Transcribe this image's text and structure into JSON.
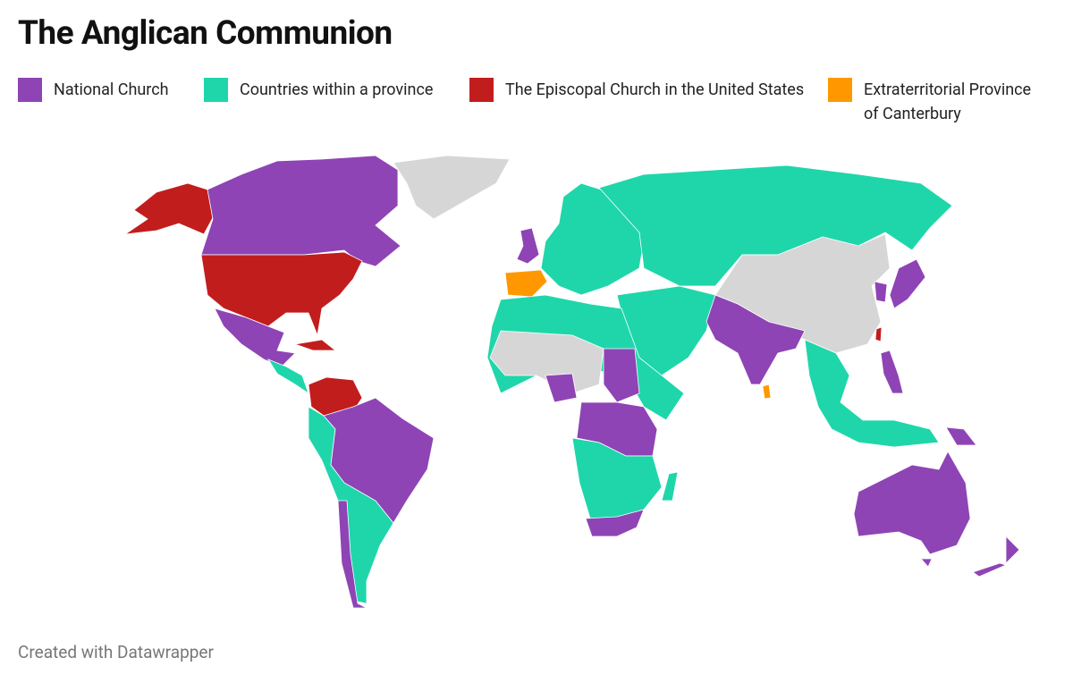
{
  "title": "The Anglican Communion",
  "legend": [
    {
      "label": "National Church",
      "color": "#8e44b5"
    },
    {
      "label": "Countries within a province",
      "color": "#1fd6aa"
    },
    {
      "label": "The Episcopal Church in the United States",
      "color": "#c21d1d"
    },
    {
      "label": "Extraterritorial Province of Canterbury",
      "color": "#ff9800"
    }
  ],
  "footer": "Created with Datawrapper"
}
